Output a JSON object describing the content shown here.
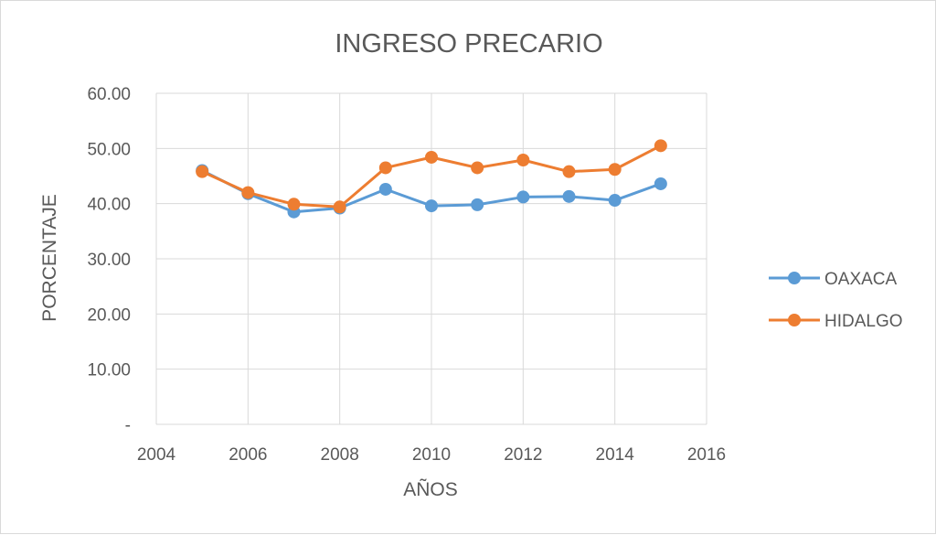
{
  "chart_data": {
    "type": "line",
    "title": "INGRESO PRECARIO",
    "xlabel": "AÑOS",
    "ylabel": "PORCENTAJE",
    "xlim": [
      2004,
      2016
    ],
    "ylim": [
      0,
      60
    ],
    "x_ticks": [
      2004,
      2006,
      2008,
      2010,
      2012,
      2014,
      2016
    ],
    "x_tick_labels": [
      "2004",
      "2006",
      "2008",
      "2010",
      "2012",
      "2014",
      "2016"
    ],
    "y_ticks": [
      0,
      10,
      20,
      30,
      40,
      50,
      60
    ],
    "y_tick_labels": [
      "-",
      "10.00",
      "20.00",
      "30.00",
      "40.00",
      "50.00",
      "60.00"
    ],
    "grid": true,
    "legend_position": "right",
    "series": [
      {
        "name": "OAXACA",
        "color": "#5b9bd5",
        "x": [
          2005,
          2006,
          2007,
          2008,
          2009,
          2010,
          2011,
          2012,
          2013,
          2014,
          2015
        ],
        "y": [
          46.0,
          41.8,
          38.5,
          39.2,
          42.6,
          39.6,
          39.8,
          41.2,
          41.3,
          40.6,
          43.6
        ]
      },
      {
        "name": "HIDALGO",
        "color": "#ed7d31",
        "x": [
          2005,
          2006,
          2007,
          2008,
          2009,
          2010,
          2011,
          2012,
          2013,
          2014,
          2015
        ],
        "y": [
          45.8,
          42.0,
          39.9,
          39.4,
          46.5,
          48.4,
          46.5,
          47.9,
          45.8,
          46.2,
          50.5
        ]
      }
    ]
  }
}
